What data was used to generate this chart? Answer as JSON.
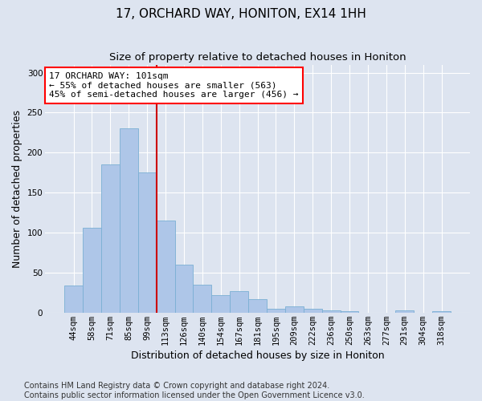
{
  "title": "17, ORCHARD WAY, HONITON, EX14 1HH",
  "subtitle": "Size of property relative to detached houses in Honiton",
  "xlabel": "Distribution of detached houses by size in Honiton",
  "ylabel": "Number of detached properties",
  "categories": [
    "44sqm",
    "58sqm",
    "71sqm",
    "85sqm",
    "99sqm",
    "113sqm",
    "126sqm",
    "140sqm",
    "154sqm",
    "167sqm",
    "181sqm",
    "195sqm",
    "209sqm",
    "222sqm",
    "236sqm",
    "250sqm",
    "263sqm",
    "277sqm",
    "291sqm",
    "304sqm",
    "318sqm"
  ],
  "values": [
    34,
    106,
    185,
    230,
    175,
    115,
    60,
    35,
    22,
    27,
    17,
    5,
    8,
    5,
    3,
    2,
    0,
    0,
    3,
    0,
    2
  ],
  "bar_color": "#aec6e8",
  "bar_edge_color": "#7aafd4",
  "vline_color": "#cc0000",
  "annotation_text": "17 ORCHARD WAY: 101sqm\n← 55% of detached houses are smaller (563)\n45% of semi-detached houses are larger (456) →",
  "annotation_box_color": "white",
  "annotation_box_edge_color": "red",
  "ylim": [
    0,
    310
  ],
  "yticks": [
    0,
    50,
    100,
    150,
    200,
    250,
    300
  ],
  "footnote": "Contains HM Land Registry data © Crown copyright and database right 2024.\nContains public sector information licensed under the Open Government Licence v3.0.",
  "background_color": "#dde4f0",
  "plot_background_color": "#dde4f0",
  "title_fontsize": 11,
  "subtitle_fontsize": 9.5,
  "footnote_fontsize": 7,
  "tick_fontsize": 7.5,
  "ylabel_fontsize": 9,
  "xlabel_fontsize": 9
}
